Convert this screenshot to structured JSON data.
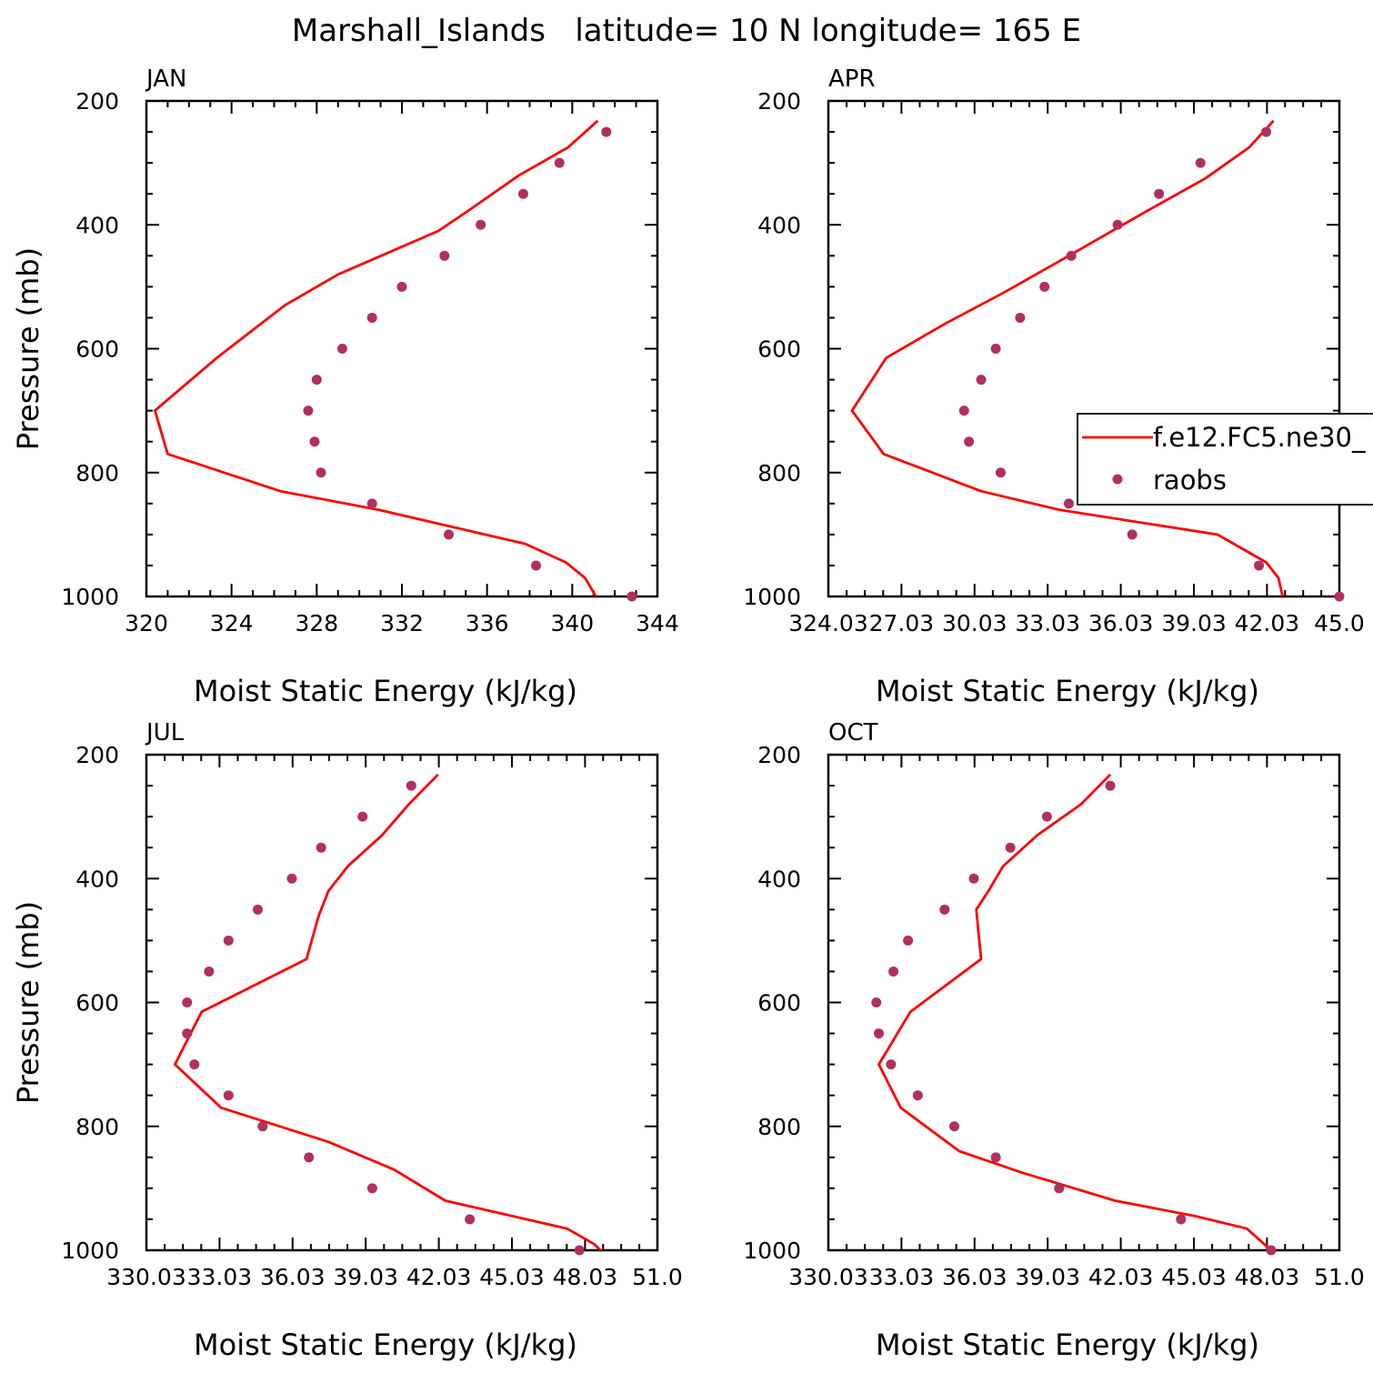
{
  "figure": {
    "title": "Marshall_Islands   latitude= 10 N longitude= 165 E"
  },
  "legend": {
    "entries": [
      {
        "label": "f.e12.FC5.ne30_",
        "kind": "line",
        "color": "#ff0000"
      },
      {
        "label": "raobs",
        "kind": "marker",
        "color": "#b03060"
      }
    ]
  },
  "colors": {
    "model": "#ff0000",
    "raobs": "#b03060"
  },
  "chart_data": [
    {
      "type": "line",
      "panel": "JAN",
      "xlabel": "Moist Static Energy (kJ/kg)",
      "ylabel": "Pressure (mb)",
      "xlim": [
        320,
        344
      ],
      "ylim": [
        1000,
        200
      ],
      "xticks": [
        320,
        324,
        328,
        332,
        336,
        340,
        344
      ],
      "xticklabels": [
        "320",
        "324",
        "328",
        "332",
        "336",
        "340",
        "344"
      ],
      "yticks": [
        200,
        400,
        600,
        800,
        1000
      ],
      "yticklabels": [
        "200",
        "400",
        "600",
        "800",
        "1000"
      ],
      "series": [
        {
          "name": "f.e12.FC5.ne30_",
          "style": "line",
          "x": [
            341.2,
            339.8,
            337.5,
            335.0,
            333.7,
            329.0,
            326.5,
            323.3,
            320.4,
            321.0,
            326.3,
            330.9,
            337.8,
            339.7,
            340.6,
            341.2
          ],
          "y": [
            232,
            275,
            320,
            380,
            410,
            480,
            530,
            615,
            700,
            770,
            830,
            860,
            915,
            945,
            970,
            1005
          ]
        },
        {
          "name": "raobs",
          "style": "marker",
          "x": [
            341.6,
            339.4,
            337.7,
            335.7,
            334.0,
            332.0,
            330.6,
            329.2,
            328.0,
            327.6,
            327.9,
            328.2,
            330.6,
            334.2,
            338.3,
            342.8
          ],
          "y": [
            250,
            300,
            350,
            400,
            450,
            500,
            550,
            600,
            650,
            700,
            750,
            800,
            850,
            900,
            950,
            1000
          ]
        }
      ]
    },
    {
      "type": "line",
      "panel": "APR",
      "xlabel": "Moist Static Energy (kJ/kg)",
      "ylabel": "",
      "xlim": [
        324.03,
        345.0
      ],
      "ylim": [
        1000,
        200
      ],
      "xticks": [
        324.03,
        327.03,
        330.03,
        333.03,
        336.03,
        339.03,
        342.03,
        345.0
      ],
      "xticklabels": [
        "324.03",
        "27.03",
        "30.03",
        "33.03",
        "36.03",
        "39.03",
        "42.03",
        "45.0"
      ],
      "yticks": [
        200,
        400,
        600,
        800,
        1000
      ],
      "yticklabels": [
        "200",
        "400",
        "600",
        "800",
        "1000"
      ],
      "series": [
        {
          "name": "f.e12.FC5.ne30_",
          "style": "line",
          "x": [
            342.3,
            341.3,
            339.5,
            337.0,
            333.9,
            331.2,
            328.8,
            326.4,
            325.0,
            326.3,
            330.3,
            333.5,
            340.0,
            342.0,
            342.5,
            342.7
          ],
          "y": [
            232,
            275,
            325,
            380,
            450,
            510,
            560,
            615,
            700,
            770,
            830,
            860,
            900,
            945,
            970,
            1005
          ]
        },
        {
          "name": "raobs",
          "style": "marker",
          "x": [
            342.0,
            339.3,
            337.6,
            335.9,
            334.0,
            332.9,
            331.9,
            330.9,
            330.3,
            329.6,
            329.8,
            331.1,
            333.9,
            336.5,
            341.7,
            345.0
          ],
          "y": [
            250,
            300,
            350,
            400,
            450,
            500,
            550,
            600,
            650,
            700,
            750,
            800,
            850,
            900,
            950,
            1000
          ]
        }
      ]
    },
    {
      "type": "line",
      "panel": "JUL",
      "xlabel": "Moist Static Energy (kJ/kg)",
      "ylabel": "Pressure (mb)",
      "xlim": [
        330.03,
        351.0
      ],
      "ylim": [
        1000,
        200
      ],
      "xticks": [
        330.03,
        333.03,
        336.03,
        339.03,
        342.03,
        345.03,
        348.03,
        351.0
      ],
      "xticklabels": [
        "330.03",
        "33.03",
        "36.03",
        "39.03",
        "42.03",
        "45.03",
        "48.03",
        "51.0"
      ],
      "yticks": [
        200,
        400,
        600,
        800,
        1000
      ],
      "yticklabels": [
        "200",
        "400",
        "600",
        "800",
        "1000"
      ],
      "series": [
        {
          "name": "f.e12.FC5.ne30_",
          "style": "line",
          "x": [
            342.0,
            340.8,
            339.7,
            338.3,
            337.5,
            337.1,
            336.6,
            332.3,
            331.2,
            333.1,
            337.5,
            340.2,
            342.3,
            347.3,
            348.4,
            348.8
          ],
          "y": [
            232,
            280,
            330,
            380,
            420,
            460,
            530,
            615,
            700,
            770,
            825,
            870,
            920,
            965,
            990,
            1005
          ]
        },
        {
          "name": "raobs",
          "style": "marker",
          "x": [
            340.9,
            338.9,
            337.2,
            336.0,
            334.6,
            333.4,
            332.6,
            331.7,
            331.7,
            332.0,
            333.4,
            334.8,
            336.7,
            339.3,
            343.3,
            347.8
          ],
          "y": [
            250,
            300,
            350,
            400,
            450,
            500,
            550,
            600,
            650,
            700,
            750,
            800,
            850,
            900,
            950,
            1000
          ]
        }
      ]
    },
    {
      "type": "line",
      "panel": "OCT",
      "xlabel": "Moist Static Energy (kJ/kg)",
      "ylabel": "",
      "xlim": [
        330.03,
        351.0
      ],
      "ylim": [
        1000,
        200
      ],
      "xticks": [
        330.03,
        333.03,
        336.03,
        339.03,
        342.03,
        345.03,
        348.03,
        351.0
      ],
      "xticklabels": [
        "330.03",
        "33.03",
        "36.03",
        "39.03",
        "42.03",
        "45.03",
        "48.03",
        "51.0"
      ],
      "yticks": [
        200,
        400,
        600,
        800,
        1000
      ],
      "yticklabels": [
        "200",
        "400",
        "600",
        "800",
        "1000"
      ],
      "series": [
        {
          "name": "f.e12.FC5.ne30_",
          "style": "line",
          "x": [
            341.6,
            340.4,
            338.6,
            337.2,
            336.6,
            336.1,
            336.3,
            333.4,
            332.1,
            333.0,
            335.4,
            338.0,
            341.8,
            345.1,
            347.2,
            348.2
          ],
          "y": [
            232,
            280,
            330,
            380,
            420,
            450,
            530,
            615,
            700,
            770,
            840,
            875,
            920,
            945,
            965,
            1000
          ]
        },
        {
          "name": "raobs",
          "style": "marker",
          "x": [
            341.6,
            339.0,
            337.5,
            336.0,
            334.8,
            333.3,
            332.7,
            332.0,
            332.1,
            332.6,
            333.7,
            335.2,
            336.9,
            339.5,
            344.5,
            348.2
          ],
          "y": [
            250,
            300,
            350,
            400,
            450,
            500,
            550,
            600,
            650,
            700,
            750,
            800,
            850,
            900,
            950,
            1000
          ]
        }
      ]
    }
  ]
}
